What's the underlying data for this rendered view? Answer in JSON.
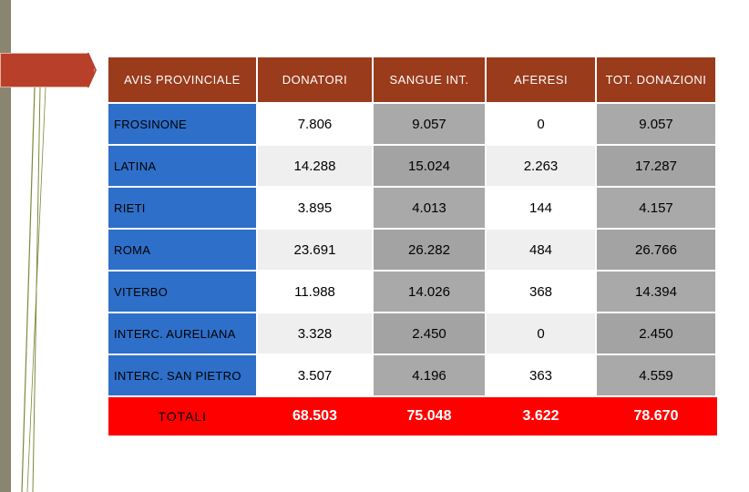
{
  "table": {
    "headers": [
      "AVIS PROVINCIALE",
      "DONATORI",
      "SANGUE INT.",
      "AFERESI",
      "TOT. DONAZIONI"
    ],
    "rows": [
      {
        "name": "FROSINONE",
        "donatori": "7.806",
        "sangue": "9.057",
        "aferesi": "0",
        "totale": "9.057"
      },
      {
        "name": "LATINA",
        "donatori": "14.288",
        "sangue": "15.024",
        "aferesi": "2.263",
        "totale": "17.287"
      },
      {
        "name": "RIETI",
        "donatori": "3.895",
        "sangue": "4.013",
        "aferesi": "144",
        "totale": "4.157"
      },
      {
        "name": "ROMA",
        "donatori": "23.691",
        "sangue": "26.282",
        "aferesi": "484",
        "totale": "26.766"
      },
      {
        "name": "VITERBO",
        "donatori": "11.988",
        "sangue": "14.026",
        "aferesi": "368",
        "totale": "14.394"
      },
      {
        "name": "INTERC. AURELIANA",
        "donatori": "3.328",
        "sangue": "2.450",
        "aferesi": "0",
        "totale": "2.450"
      },
      {
        "name": "INTERC. SAN PIETRO",
        "donatori": "3.507",
        "sangue": "4.196",
        "aferesi": "363",
        "totale": "4.559"
      }
    ],
    "total": {
      "name": "TOTALI",
      "donatori": "68.503",
      "sangue": "75.048",
      "aferesi": "3.622",
      "totale": "78.670"
    }
  },
  "colors": {
    "header": "#9a3b1b",
    "name_column": "#2e6fc9",
    "total_row": "#ff0000",
    "accent_tab": "#b8402a"
  }
}
